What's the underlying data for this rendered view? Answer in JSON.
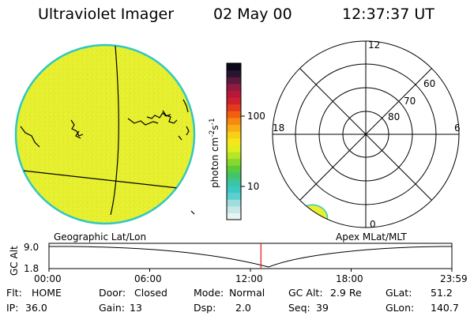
{
  "header": {
    "instrument": "Ultraviolet Imager",
    "date": "02 May 00",
    "time": "12:37:37 UT"
  },
  "colorbar": {
    "unit_label": "photon cm",
    "unit_sup1": "-2",
    "unit_mid": "s",
    "unit_sup2": "-1",
    "tick_100": "100",
    "tick_10": "10",
    "colors": [
      "#e8f4f4",
      "#c8e8e8",
      "#9fdcdc",
      "#5ad0d0",
      "#3ec8c4",
      "#39c6a0",
      "#44c46a",
      "#5acb3c",
      "#86d92c",
      "#b7e527",
      "#e0ee1e",
      "#f4e81a",
      "#f8d018",
      "#f8ae14",
      "#f68a10",
      "#f06010",
      "#e23a1c",
      "#d02030",
      "#b81838",
      "#901a40",
      "#5c1a3a",
      "#2a1430",
      "#0a0a1a"
    ]
  },
  "left_panel": {
    "caption": "Geographic Lat/Lon",
    "fill_color": "#e8f030"
  },
  "right_panel": {
    "caption": "Apex MLat/MLT",
    "mlt_labels": {
      "top": "12",
      "left": "18",
      "right": "6",
      "bottom": "0"
    },
    "lat_labels": [
      "60",
      "70",
      "80"
    ]
  },
  "timeline": {
    "axis_label": "GC Alt",
    "y_top": "9.0",
    "y_bottom": "1.8",
    "x_ticks": [
      "00:00",
      "06:00",
      "12:00",
      "18:00",
      "23:59"
    ],
    "current_time_hours": 12.627
  },
  "info": {
    "row1": [
      {
        "key": "Flt:",
        "value": "HOME"
      },
      {
        "key": "Door:",
        "value": "Closed"
      },
      {
        "key": "Mode:",
        "value": "Normal"
      },
      {
        "key": "GC Alt:",
        "value": "2.9 Re"
      },
      {
        "key": "GLat:",
        "value": "51.2"
      }
    ],
    "row2": [
      {
        "key": "IP:",
        "value": "36.0"
      },
      {
        "key": "Gain:",
        "value": "13"
      },
      {
        "key": "Dsp:",
        "value": "2.0"
      },
      {
        "key": "Seq:",
        "value": "39"
      },
      {
        "key": "GLon:",
        "value": "140.7"
      }
    ]
  }
}
